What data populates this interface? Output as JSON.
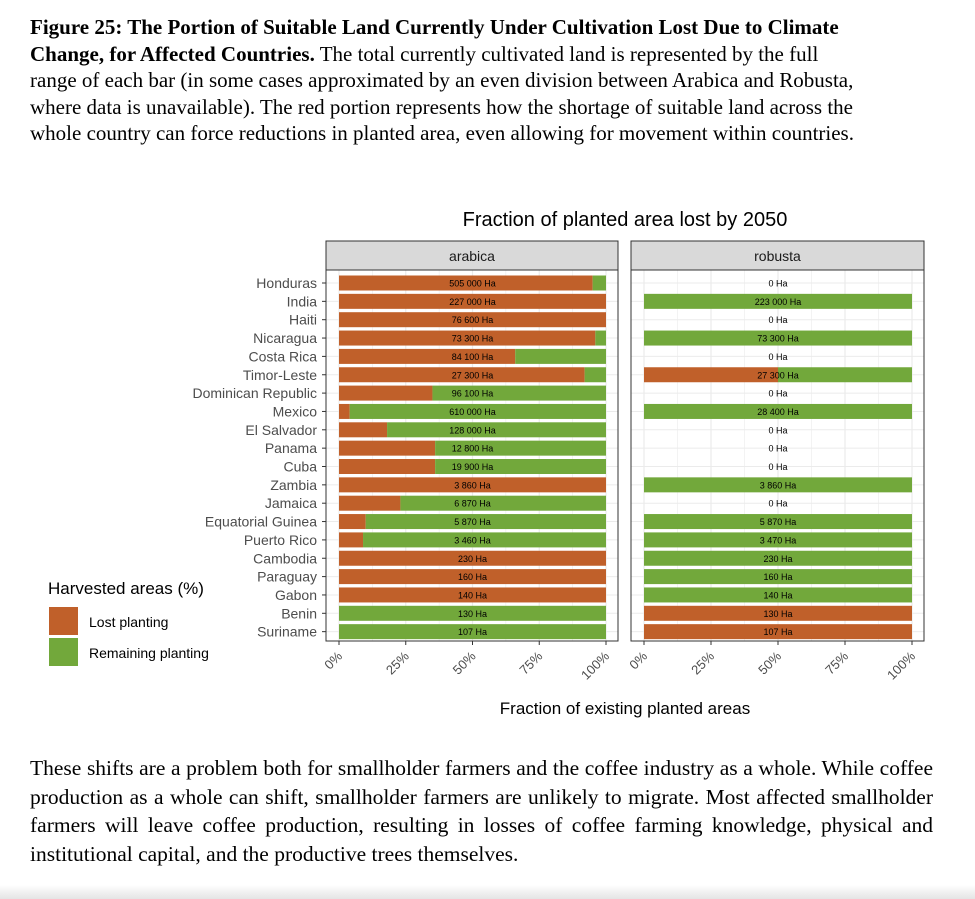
{
  "caption": {
    "bold_text": "Figure 25: The Portion of Suitable Land Currently Under Cultivation Lost Due to Climate Change, for Affected Countries.",
    "text": "The total currently cultivated land is represented by the full range of each bar (in some cases approximated by an even division between Arabica and Robusta, where data is unavailable). The red portion represents how the shortage of suitable land across the whole country can force reductions in planted area, even allowing for movement within countries."
  },
  "body_text": "These shifts are a problem both for smallholder farmers and the coffee industry as a whole. While coffee production as a whole can shift, smallholder farmers are unlikely to migrate. Most affected smallholder farmers will leave coffee production, resulting in losses of coffee farming knowledge, physical and institutional capital, and the productive trees themselves.",
  "colors": {
    "lost": "#c0602a",
    "remaining": "#72a83b",
    "panel_header": "#d9d9d9",
    "grid": "#ebebeb"
  },
  "chart_data": {
    "type": "bar",
    "orientation": "horizontal",
    "stacked": true,
    "title": "Fraction of planted area lost by 2050",
    "xlabel": "Fraction of existing planted areas",
    "ylabel": "",
    "xlim": [
      0,
      100
    ],
    "x_ticks": [
      "0%",
      "25%",
      "50%",
      "75%",
      "100%"
    ],
    "legend": {
      "title": "Harvested areas (%)",
      "position": "left",
      "entries": [
        "Lost planting",
        "Remaining planting"
      ]
    },
    "categories": [
      "Honduras",
      "India",
      "Haiti",
      "Nicaragua",
      "Costa Rica",
      "Timor-Leste",
      "Dominican Republic",
      "Mexico",
      "El Salvador",
      "Panama",
      "Cuba",
      "Zambia",
      "Jamaica",
      "Equatorial Guinea",
      "Puerto Rico",
      "Cambodia",
      "Paraguay",
      "Gabon",
      "Benin",
      "Suriname"
    ],
    "panels": [
      {
        "name": "arabica",
        "lost_pct": [
          95,
          100,
          100,
          96,
          66,
          92,
          35,
          4,
          18,
          36,
          36,
          100,
          23,
          10,
          9,
          100,
          100,
          100,
          0,
          0
        ],
        "area_labels": [
          "505 000 Ha",
          "227 000 Ha",
          "76 600 Ha",
          "73 300 Ha",
          "84 100 Ha",
          "27 300 Ha",
          "96 100 Ha",
          "610 000 Ha",
          "128 000 Ha",
          "12 800 Ha",
          "19 900 Ha",
          "3 860 Ha",
          "6 870 Ha",
          "5 870 Ha",
          "3 460 Ha",
          "230 Ha",
          "160 Ha",
          "140 Ha",
          "130 Ha",
          "107 Ha"
        ]
      },
      {
        "name": "robusta",
        "lost_pct": [
          null,
          0,
          null,
          0,
          null,
          50,
          null,
          0,
          null,
          null,
          null,
          0,
          null,
          0,
          0,
          0,
          0,
          0,
          100,
          100
        ],
        "area_labels": [
          "0 Ha",
          "223 000 Ha",
          "0 Ha",
          "73 300 Ha",
          "0 Ha",
          "27 300 Ha",
          "0 Ha",
          "28 400 Ha",
          "0 Ha",
          "0 Ha",
          "0 Ha",
          "3 860 Ha",
          "0 Ha",
          "5 870 Ha",
          "3 470 Ha",
          "230 Ha",
          "160 Ha",
          "140 Ha",
          "130 Ha",
          "107 Ha"
        ]
      }
    ]
  }
}
